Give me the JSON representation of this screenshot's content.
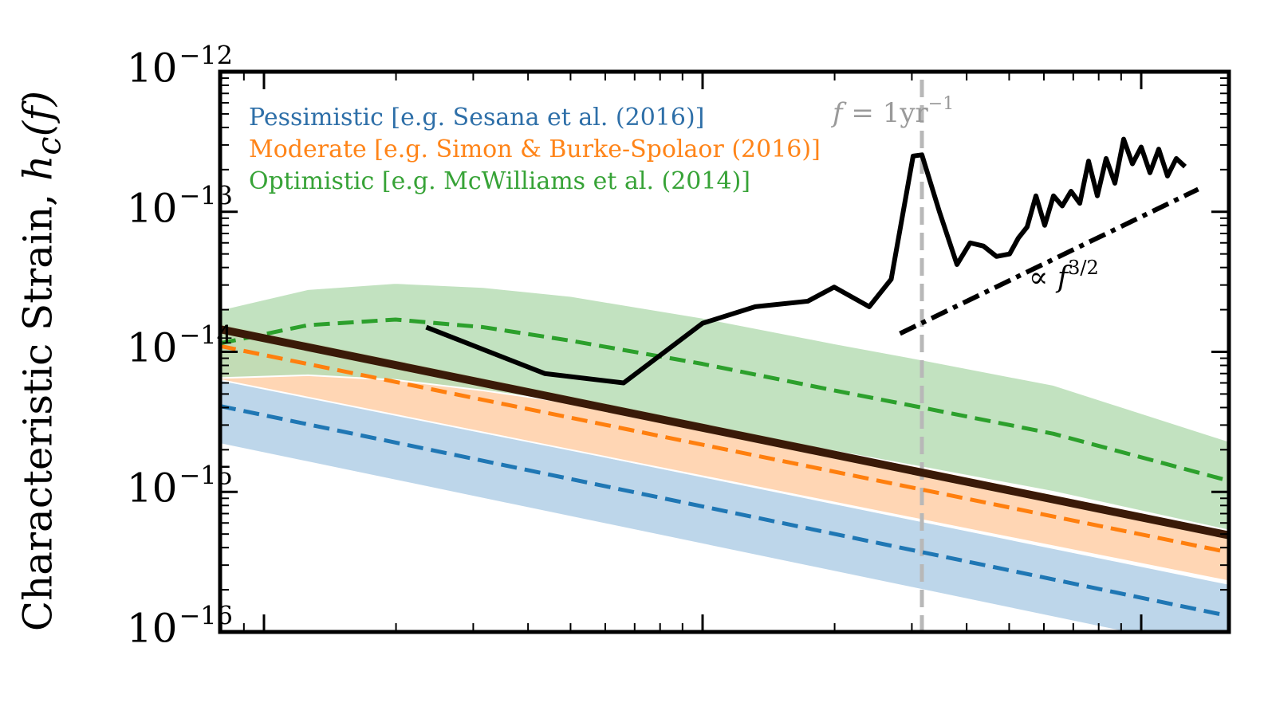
{
  "colors": {
    "pessimistic": "#1f77b4",
    "moderate": "#ff7f0e",
    "optimistic": "#2ca02c",
    "pessimistic_band": "#b9d4e9",
    "moderate_band": "#ffd4b0",
    "optimistic_band": "#b7ddb5",
    "sensitivity_curve": "#000000",
    "moderate_median": "#3a1a08",
    "vline": "#b8b8b8"
  },
  "legend": [
    {
      "label": "Pessimistic [e.g. Sesana et al. (2016)]",
      "color": "#1f77b4"
    },
    {
      "label": "Moderate [e.g. Simon & Burke-Spolaor (2016)]",
      "color": "#ff7f0e"
    },
    {
      "label": "Optimistic [e.g. McWilliams et al. (2014)]",
      "color": "#2ca02c"
    }
  ],
  "axis": {
    "ylabel_text": "Characteristic Strain, ",
    "ylabel_symbol": "h",
    "ylabel_sub": "c",
    "ylabel_arg": "(f)",
    "ytick_base": "10",
    "yticks": [
      "−12",
      "−13",
      "−14",
      "−15",
      "−16"
    ]
  },
  "annotations": {
    "one_year_f": "f",
    "one_year_rest": " = 1yr",
    "one_year_exp": "−1",
    "slope_prop": "∝ ",
    "slope_f": "f",
    "slope_exp": "3/2"
  },
  "chart_data": {
    "type": "line",
    "y_scale": "log",
    "x_scale": "log",
    "ylim": [
      1e-16,
      1e-12
    ],
    "xlim_log10": [
      -9.1,
      -6.8
    ],
    "x_ticks_shown": false,
    "vline_log10_f": -7.5,
    "series": [
      {
        "key": "optimistic",
        "style": "dashed",
        "x": [
          -9.1,
          -8.9,
          -8.7,
          -8.5,
          -8.3,
          -8.0,
          -7.7,
          -7.5,
          -7.2,
          -6.8
        ],
        "y": [
          1.15e-14,
          1.55e-14,
          1.7e-14,
          1.5e-14,
          1.2e-14,
          8.2e-15,
          5.3e-15,
          4e-15,
          2.6e-15,
          1.2e-15
        ],
        "band_hi": [
          2e-14,
          2.8e-14,
          3.1e-14,
          2.9e-14,
          2.5e-14,
          1.75e-14,
          1.15e-14,
          8.8e-15,
          5.8e-15,
          2.3e-15
        ],
        "band_lo": [
          6.5e-15,
          6.8e-15,
          6.3e-15,
          5.3e-15,
          4.3e-15,
          2.95e-15,
          1.95e-15,
          1.5e-15,
          1e-15,
          5.3e-16
        ]
      },
      {
        "key": "moderate",
        "style": "dashed",
        "x": [
          -9.1,
          -6.8
        ],
        "y": [
          1.1e-14,
          3.7e-16
        ],
        "band_hi": [
          1.6e-14,
          5.3e-16
        ],
        "band_lo": [
          6.3e-15,
          2.3e-16
        ]
      },
      {
        "key": "moderate_median",
        "style": "solid-thick",
        "x": [
          -9.1,
          -6.8
        ],
        "y": [
          1.45e-14,
          4.9e-16
        ]
      },
      {
        "key": "pessimistic",
        "style": "dashed",
        "x": [
          -9.1,
          -6.8
        ],
        "y": [
          4.1e-15,
          1.3e-16
        ],
        "band_hi": [
          6.5e-15,
          2.2e-16
        ],
        "band_lo": [
          2.2e-15,
          7e-17
        ]
      },
      {
        "key": "sensitivity_curve",
        "style": "solid",
        "x": [
          -8.63,
          -8.36,
          -8.18,
          -8.0,
          -7.88,
          -7.76,
          -7.7,
          -7.62,
          -7.57,
          -7.52,
          -7.5,
          -7.46,
          -7.42,
          -7.39,
          -7.36,
          -7.33,
          -7.3,
          -7.28,
          -7.26,
          -7.24,
          -7.22,
          -7.2,
          -7.18,
          -7.16,
          -7.14,
          -7.12,
          -7.1,
          -7.08,
          -7.06,
          -7.04,
          -7.02,
          -7.0,
          -6.98,
          -6.96,
          -6.94,
          -6.92,
          -6.9
        ],
        "y": [
          1.5e-14,
          7e-15,
          6e-15,
          1.6e-14,
          2.1e-14,
          2.3e-14,
          2.9e-14,
          2.1e-14,
          3.3e-14,
          2.5e-13,
          2.55e-13,
          1e-13,
          4.2e-14,
          6e-14,
          5.7e-14,
          4.8e-14,
          5e-14,
          6.5e-14,
          7.8e-14,
          1.3e-13,
          8e-14,
          1.3e-13,
          1.1e-13,
          1.4e-13,
          1.15e-13,
          2.3e-13,
          1.3e-13,
          2.4e-13,
          1.6e-13,
          3.3e-13,
          2.2e-13,
          2.9e-13,
          1.9e-13,
          2.8e-13,
          1.8e-13,
          2.4e-13,
          2.1e-13
        ]
      },
      {
        "key": "slope_guide",
        "style": "dash-dot",
        "x": [
          -7.55,
          -6.87
        ],
        "y": [
          1.35e-14,
          1.45e-13
        ]
      }
    ]
  }
}
